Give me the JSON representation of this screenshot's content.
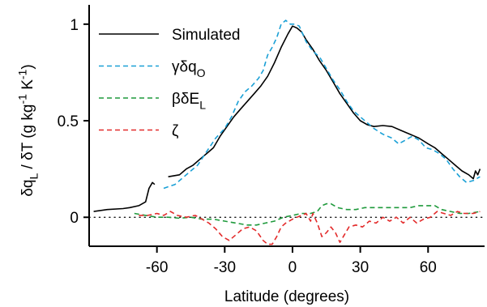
{
  "chart_data": {
    "type": "line",
    "xlabel": "Latitude (degrees)",
    "ylabel": {
      "parts": [
        {
          "t": "δq",
          "sub": "L"
        },
        {
          "t": " / δT (g kg"
        },
        {
          "t": "",
          "sup": "-1"
        },
        {
          "t": " K"
        },
        {
          "t": "",
          "sup": "-1"
        },
        {
          "t": ")"
        }
      ]
    },
    "xlim": [
      -90,
      85
    ],
    "ylim": [
      -0.15,
      1.1
    ],
    "xticks": [
      -60,
      -30,
      0,
      30,
      60
    ],
    "xtick_labels": [
      "-60",
      "-30",
      "0",
      "30",
      "60"
    ],
    "yticks": [
      0,
      0.5,
      1
    ],
    "ytick_labels": [
      "0",
      "0.5",
      "1"
    ],
    "grid": false,
    "legend_position": "top-left",
    "zero_line": {
      "y": 0,
      "style": "dotted",
      "color": "#000000"
    },
    "series": [
      {
        "name": "Simulated",
        "label": {
          "t": "Simulated"
        },
        "color": "#000000",
        "dash": "solid",
        "segments": [
          [
            [
              -88,
              0.03
            ],
            [
              -82,
              0.04
            ],
            [
              -75,
              0.045
            ],
            [
              -72,
              0.05
            ],
            [
              -68,
              0.06
            ],
            [
              -65,
              0.08
            ],
            [
              -63.5,
              0.15
            ],
            [
              -62,
              0.18
            ],
            [
              -61,
              0.17
            ]
          ],
          [
            [
              -55,
              0.21
            ],
            [
              -50,
              0.22
            ],
            [
              -47,
              0.25
            ],
            [
              -44,
              0.27
            ],
            [
              -41,
              0.3
            ],
            [
              -38,
              0.33
            ],
            [
              -35,
              0.36
            ],
            [
              -32,
              0.42
            ],
            [
              -29,
              0.47
            ],
            [
              -26,
              0.52
            ],
            [
              -23,
              0.56
            ],
            [
              -20,
              0.6
            ],
            [
              -17,
              0.64
            ],
            [
              -14,
              0.68
            ],
            [
              -11,
              0.73
            ],
            [
              -8,
              0.8
            ],
            [
              -5,
              0.88
            ],
            [
              -2,
              0.95
            ],
            [
              0,
              0.99
            ],
            [
              2,
              0.98
            ],
            [
              4,
              0.96
            ],
            [
              6,
              0.92
            ],
            [
              9,
              0.87
            ],
            [
              12,
              0.81
            ],
            [
              15,
              0.76
            ],
            [
              18,
              0.7
            ],
            [
              21,
              0.64
            ],
            [
              24,
              0.59
            ],
            [
              27,
              0.54
            ],
            [
              30,
              0.5
            ],
            [
              33,
              0.48
            ],
            [
              36,
              0.47
            ],
            [
              40,
              0.475
            ],
            [
              44,
              0.47
            ],
            [
              48,
              0.45
            ],
            [
              52,
              0.43
            ],
            [
              56,
              0.41
            ],
            [
              60,
              0.38
            ],
            [
              63,
              0.36
            ],
            [
              66,
              0.33
            ],
            [
              69,
              0.3
            ],
            [
              72,
              0.27
            ],
            [
              75,
              0.24
            ],
            [
              78,
              0.22
            ],
            [
              80,
              0.2
            ],
            [
              81,
              0.24
            ],
            [
              82,
              0.22
            ],
            [
              83,
              0.25
            ]
          ]
        ]
      },
      {
        "name": "γδqO",
        "label": {
          "t": "γδq",
          "sub": "O"
        },
        "color": "#1aa0d6",
        "dash": "dashed",
        "segments": [
          [
            [
              -57,
              0.15
            ],
            [
              -52,
              0.17
            ],
            [
              -48,
              0.21
            ],
            [
              -45,
              0.24
            ],
            [
              -42,
              0.27
            ],
            [
              -38,
              0.34
            ],
            [
              -34,
              0.41
            ],
            [
              -30,
              0.46
            ],
            [
              -27,
              0.52
            ],
            [
              -24,
              0.6
            ],
            [
              -21,
              0.65
            ],
            [
              -18,
              0.68
            ],
            [
              -15,
              0.72
            ],
            [
              -13,
              0.76
            ],
            [
              -11,
              0.84
            ],
            [
              -9,
              0.88
            ],
            [
              -7,
              0.93
            ],
            [
              -5,
              1.0
            ],
            [
              -3,
              1.02
            ],
            [
              -1,
              1.0
            ],
            [
              1,
              1.0
            ],
            [
              3,
              0.99
            ],
            [
              6,
              0.91
            ],
            [
              9,
              0.86
            ],
            [
              12,
              0.83
            ],
            [
              15,
              0.77
            ],
            [
              18,
              0.71
            ],
            [
              21,
              0.66
            ],
            [
              24,
              0.6
            ],
            [
              27,
              0.55
            ],
            [
              30,
              0.52
            ],
            [
              33,
              0.49
            ],
            [
              36,
              0.46
            ],
            [
              40,
              0.43
            ],
            [
              44,
              0.41
            ],
            [
              47,
              0.38
            ],
            [
              50,
              0.4
            ],
            [
              53,
              0.42
            ],
            [
              56,
              0.4
            ],
            [
              59,
              0.36
            ],
            [
              62,
              0.35
            ],
            [
              65,
              0.33
            ],
            [
              68,
              0.3
            ],
            [
              71,
              0.25
            ],
            [
              74,
              0.21
            ],
            [
              77,
              0.18
            ],
            [
              80,
              0.19
            ],
            [
              83,
              0.21
            ]
          ]
        ]
      },
      {
        "name": "βδEL",
        "label": {
          "t": "βδE",
          "sub": "L"
        },
        "color": "#1f9a3c",
        "dash": "dashed",
        "segments": [
          [
            [
              -70,
              0.02
            ],
            [
              -65,
              0.01
            ],
            [
              -60,
              0.0
            ],
            [
              -55,
              0.0
            ],
            [
              -50,
              -0.005
            ],
            [
              -45,
              0.0
            ],
            [
              -40,
              -0.01
            ],
            [
              -35,
              -0.01
            ],
            [
              -30,
              -0.02
            ],
            [
              -25,
              -0.03
            ],
            [
              -20,
              -0.04
            ],
            [
              -16,
              -0.04
            ],
            [
              -12,
              -0.03
            ],
            [
              -8,
              -0.02
            ],
            [
              -4,
              0.0
            ],
            [
              0,
              0.01
            ],
            [
              4,
              0.02
            ],
            [
              8,
              0.02
            ],
            [
              11,
              0.03
            ],
            [
              13,
              0.06
            ],
            [
              15,
              0.07
            ],
            [
              17,
              0.07
            ],
            [
              20,
              0.05
            ],
            [
              24,
              0.04
            ],
            [
              28,
              0.04
            ],
            [
              32,
              0.05
            ],
            [
              36,
              0.05
            ],
            [
              40,
              0.05
            ],
            [
              44,
              0.05
            ],
            [
              48,
              0.05
            ],
            [
              52,
              0.05
            ],
            [
              56,
              0.06
            ],
            [
              60,
              0.06
            ],
            [
              63,
              0.06
            ],
            [
              66,
              0.04
            ],
            [
              70,
              0.03
            ],
            [
              74,
              0.02
            ],
            [
              78,
              0.02
            ],
            [
              83,
              0.03
            ]
          ]
        ]
      },
      {
        "name": "ζ",
        "label": {
          "t": "ζ"
        },
        "color": "#e32b2b",
        "dash": "dashed",
        "segments": [
          [
            [
              -68,
              0.01
            ],
            [
              -64,
              0.01
            ],
            [
              -60,
              0.02
            ],
            [
              -57,
              0.01
            ],
            [
              -54,
              0.03
            ],
            [
              -51,
              0.01
            ],
            [
              -47,
              0.0
            ],
            [
              -43,
              0.01
            ],
            [
              -40,
              -0.01
            ],
            [
              -37,
              -0.03
            ],
            [
              -34,
              -0.06
            ],
            [
              -31,
              -0.1
            ],
            [
              -28,
              -0.12
            ],
            [
              -25,
              -0.09
            ],
            [
              -22,
              -0.06
            ],
            [
              -19,
              -0.05
            ],
            [
              -16,
              -0.07
            ],
            [
              -13,
              -0.12
            ],
            [
              -11,
              -0.14
            ],
            [
              -9,
              -0.14
            ],
            [
              -7,
              -0.1
            ],
            [
              -5,
              -0.05
            ],
            [
              -3,
              -0.03
            ],
            [
              0,
              -0.01
            ],
            [
              2,
              0.0
            ],
            [
              4,
              0.01
            ],
            [
              6,
              0.02
            ],
            [
              8,
              -0.02
            ],
            [
              9,
              0.02
            ],
            [
              11,
              -0.03
            ],
            [
              13,
              -0.1
            ],
            [
              15,
              -0.08
            ],
            [
              17,
              -0.05
            ],
            [
              19,
              -0.08
            ],
            [
              21,
              -0.13
            ],
            [
              23,
              -0.09
            ],
            [
              25,
              -0.05
            ],
            [
              28,
              -0.04
            ],
            [
              31,
              -0.05
            ],
            [
              34,
              -0.02
            ],
            [
              37,
              -0.03
            ],
            [
              40,
              0.0
            ],
            [
              43,
              -0.02
            ],
            [
              46,
              0.0
            ],
            [
              49,
              -0.03
            ],
            [
              52,
              0.0
            ],
            [
              55,
              -0.03
            ],
            [
              58,
              -0.01
            ],
            [
              61,
              0.0
            ],
            [
              64,
              0.03
            ],
            [
              67,
              0.02
            ],
            [
              70,
              0.01
            ],
            [
              73,
              0.03
            ],
            [
              76,
              0.02
            ],
            [
              80,
              0.02
            ],
            [
              83,
              0.03
            ]
          ]
        ]
      }
    ]
  }
}
